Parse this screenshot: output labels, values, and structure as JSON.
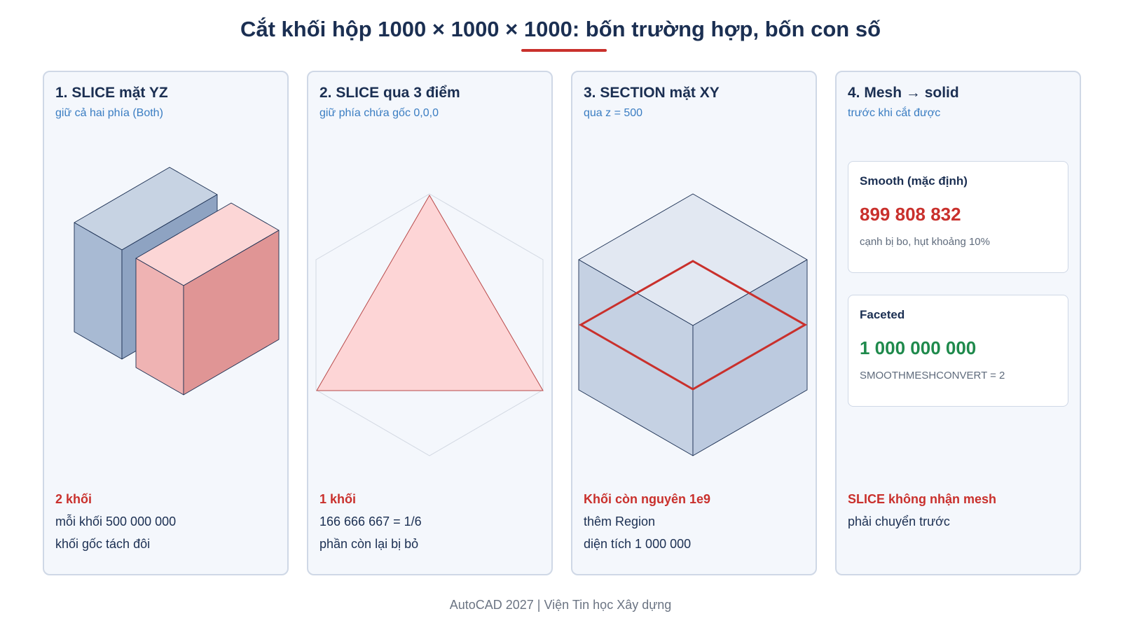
{
  "title": "Cắt khối hộp 1000 × 1000 × 1000: bốn trường hợp, bốn con số",
  "cards": [
    {
      "title": "1. SLICE mặt YZ",
      "subtitle": "giữ cả hai phía (Both)",
      "result_head": "2 khối",
      "lines": [
        "mỗi khối 500 000 000",
        "khối gốc tách đôi"
      ]
    },
    {
      "title": "2. SLICE qua 3 điểm",
      "subtitle": "giữ phía chứa gốc 0,0,0",
      "result_head": "1 khối",
      "lines": [
        "166 666 667 = 1/6",
        "phần còn lại bị bỏ"
      ]
    },
    {
      "title": "3. SECTION mặt XY",
      "subtitle": "qua z = 500",
      "result_head": "Khối còn nguyên 1e9",
      "lines": [
        "thêm Region",
        "diện tích 1 000 000"
      ]
    },
    {
      "title": "4. Mesh → solid",
      "subtitle": "trước khi cắt được",
      "result_head": "SLICE không nhận mesh",
      "lines": [
        "phải chuyển trước"
      ],
      "mesh": [
        {
          "label": "Smooth (mặc định)",
          "value": "899 808 832",
          "note": "cạnh bị bo, hụt khoảng 10%"
        },
        {
          "label": "Faceted",
          "value": "1 000 000 000",
          "note": "SMOOTHMESHCONVERT = 2"
        }
      ]
    }
  ],
  "footer": "AutoCAD 2027 | Viện Tin học Xây dựng",
  "colors": {
    "accent_red": "#c9302c",
    "accent_green": "#1f8a4c",
    "subtitle_blue": "#3a7dc2",
    "navy": "#1b2f52",
    "card_bg": "#f4f7fc"
  }
}
